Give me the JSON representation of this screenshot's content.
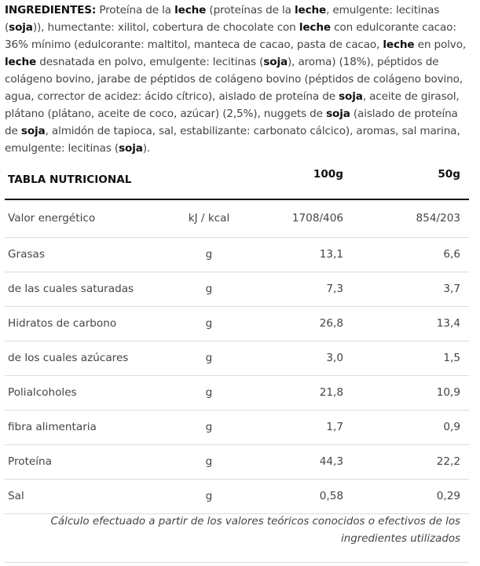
{
  "ingredients": {
    "segments": [
      {
        "text": "INGREDIENTES:",
        "bold": true
      },
      {
        "text": " Proteína de la ",
        "bold": false
      },
      {
        "text": "leche",
        "bold": true
      },
      {
        "text": " (proteínas de la ",
        "bold": false
      },
      {
        "text": "leche",
        "bold": true
      },
      {
        "text": ", emulgente: lecitinas (",
        "bold": false
      },
      {
        "text": "soja",
        "bold": true
      },
      {
        "text": ")), humectante: xilitol, cobertura de chocolate con ",
        "bold": false
      },
      {
        "text": "leche",
        "bold": true
      },
      {
        "text": " con edulcorante cacao: 36% mínimo (edulcorante: maltitol, manteca de cacao, pasta de cacao, ",
        "bold": false
      },
      {
        "text": "leche",
        "bold": true
      },
      {
        "text": " en polvo, ",
        "bold": false
      },
      {
        "text": "leche",
        "bold": true
      },
      {
        "text": " desnatada en polvo, emulgente: lecitinas (",
        "bold": false
      },
      {
        "text": "soja",
        "bold": true
      },
      {
        "text": "), aroma) (18%), péptidos de colágeno bovino, jarabe de péptidos de colágeno bovino (péptidos de colágeno bovino, agua, corrector de acidez: ácido cítrico), aislado de proteína de ",
        "bold": false
      },
      {
        "text": "soja",
        "bold": true
      },
      {
        "text": ", aceite de girasol, plátano (plátano, aceite de coco, azúcar) (2,5%), nuggets de ",
        "bold": false
      },
      {
        "text": "soja",
        "bold": true
      },
      {
        "text": " (aislado de proteína de ",
        "bold": false
      },
      {
        "text": "soja",
        "bold": true
      },
      {
        "text": ", almidón de tapioca, sal, estabilizante: carbonato cálcico), aromas, sal marina, emulgente: lecitinas (",
        "bold": false
      },
      {
        "text": "soja",
        "bold": true
      },
      {
        "text": ").",
        "bold": false
      }
    ]
  },
  "nutrition_table": {
    "header": {
      "title": "TABLA NUTRICIONAL",
      "col_100g": "100g",
      "col_50g": "50g"
    },
    "rows": [
      {
        "label": "Valor energético",
        "unit": "kJ / kcal",
        "v100": "1708/406",
        "v50": "854/203"
      },
      {
        "label": "Grasas",
        "unit": "g",
        "v100": "13,1",
        "v50": "6,6"
      },
      {
        "label": "de las cuales saturadas",
        "unit": "g",
        "v100": "7,3",
        "v50": "3,7"
      },
      {
        "label": "Hidratos de carbono",
        "unit": "g",
        "v100": "26,8",
        "v50": "13,4"
      },
      {
        "label": "de los cuales azúcares",
        "unit": "g",
        "v100": "3,0",
        "v50": "1,5"
      },
      {
        "label": "Polialcoholes",
        "unit": "g",
        "v100": "21,8",
        "v50": "10,9"
      },
      {
        "label": "fibra alimentaria",
        "unit": "g",
        "v100": "1,7",
        "v50": "0,9"
      },
      {
        "label": "Proteína",
        "unit": "g",
        "v100": "44,3",
        "v50": "22,2"
      },
      {
        "label": "Sal",
        "unit": "g",
        "v100": "0,58",
        "v50": "0,29"
      }
    ]
  },
  "footnote": "Cálculo efectuado a partir de los valores teóricos conocidos o efectivos de los ingredientes utilizados"
}
